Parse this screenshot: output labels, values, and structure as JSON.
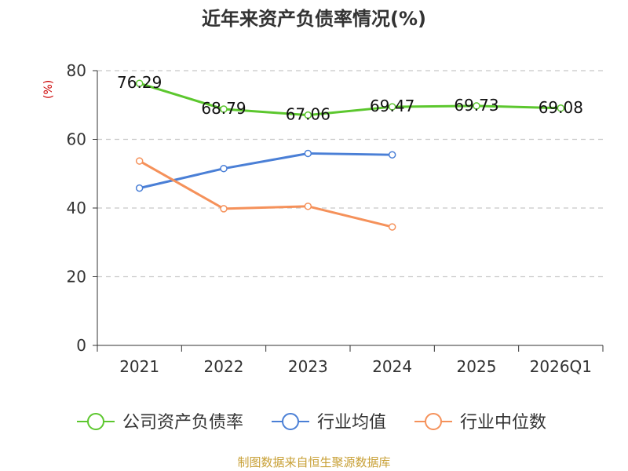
{
  "chart_data": {
    "type": "line",
    "title": "近年来资产负债率情况(%)",
    "ylabel": "(%)",
    "xlabel": "",
    "ylim": [
      0,
      80
    ],
    "yticks": [
      0,
      20,
      40,
      60,
      80
    ],
    "categories": [
      "2021",
      "2022",
      "2023",
      "2024",
      "2025",
      "2026Q1"
    ],
    "grid": true,
    "legend_position": "bottom",
    "series": [
      {
        "name": "公司资产负债率",
        "color": "#5cc72e",
        "values": [
          76.29,
          68.79,
          67.06,
          69.47,
          69.73,
          69.08
        ],
        "labels": [
          "76.29",
          "68.79",
          "67.06",
          "69.47",
          "69.73",
          "69.08"
        ]
      },
      {
        "name": "行业均值",
        "color": "#4a7fd6",
        "values": [
          45.8,
          51.5,
          55.9,
          55.5,
          null,
          null
        ]
      },
      {
        "name": "行业中位数",
        "color": "#f5915a",
        "values": [
          53.7,
          39.8,
          40.5,
          34.5,
          null,
          null
        ]
      }
    ]
  },
  "source": "制图数据来自恒生聚源数据库"
}
